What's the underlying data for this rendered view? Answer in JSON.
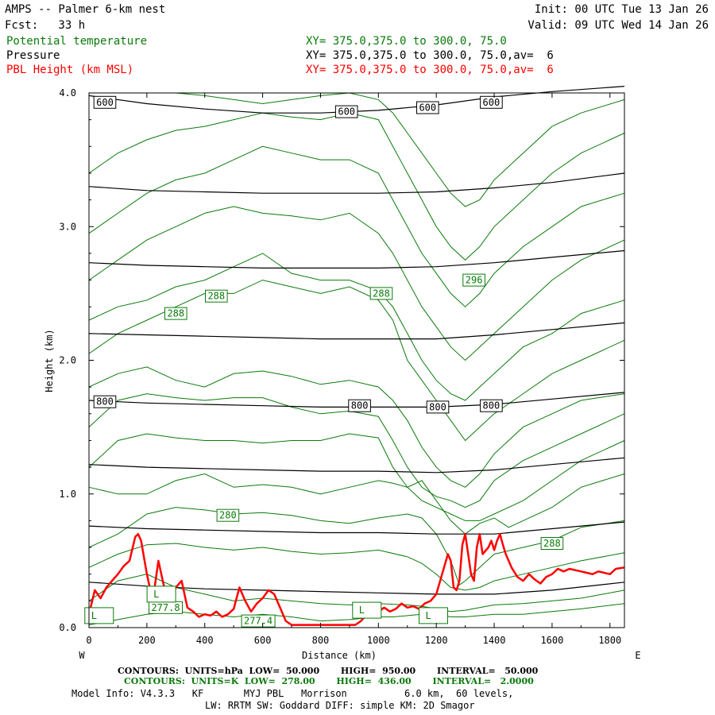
{
  "header": {
    "title": "AMPS -- Palmer 6-km nest",
    "forecast": "Fcst:   33 h",
    "init": "Init: 00 UTC Tue 13 Jan 26",
    "valid": "Valid: 09 UTC Wed 14 Jan 26",
    "fields": [
      {
        "label": "Potential temperature",
        "xy": "XY= 375.0,375.0 to 300.0, 75.0"
      },
      {
        "label": "Pressure",
        "xy": "XY= 375.0,375.0 to 300.0, 75.0,av=  6"
      },
      {
        "label": "PBL Height (km MSL)",
        "xy": "XY= 375.0,375.0 to 300.0, 75.0,av=  6"
      }
    ],
    "colors": {
      "theta": "#0a7a0a",
      "pressure": "#000000",
      "pbl": "#ff0000"
    }
  },
  "chart_data": {
    "type": "line",
    "xlabel": "Distance (km)",
    "ylabel": "Height (km)",
    "xlim": [
      0,
      1850
    ],
    "ylim": [
      0,
      4.0
    ],
    "x_ticks": [
      "0",
      "200",
      "400",
      "600",
      "800",
      "1000",
      "1200",
      "1400",
      "1600",
      "1800"
    ],
    "y_ticks": [
      "0.0",
      "1.0",
      "2.0",
      "3.0",
      "4.0"
    ],
    "x_end_labels": {
      "left": "W",
      "right": "E"
    },
    "grid": false,
    "pressure_contours": [
      {
        "label": "600",
        "x": [
          0,
          200,
          400,
          600,
          800,
          1000,
          1200,
          1400,
          1600,
          1850
        ],
        "y": [
          3.98,
          3.92,
          3.88,
          3.85,
          3.85,
          3.87,
          3.91,
          3.97,
          4.01,
          4.05
        ]
      },
      {
        "label": "",
        "x": [
          0,
          200,
          400,
          600,
          800,
          1000,
          1200,
          1400,
          1600,
          1850
        ],
        "y": [
          3.3,
          3.27,
          3.26,
          3.25,
          3.25,
          3.25,
          3.26,
          3.29,
          3.33,
          3.4
        ]
      },
      {
        "label": "",
        "x": [
          0,
          200,
          400,
          600,
          800,
          1000,
          1200,
          1400,
          1600,
          1850
        ],
        "y": [
          2.73,
          2.71,
          2.7,
          2.69,
          2.69,
          2.69,
          2.7,
          2.73,
          2.77,
          2.82
        ]
      },
      {
        "label": "",
        "x": [
          0,
          200,
          400,
          600,
          800,
          1000,
          1200,
          1400,
          1600,
          1850
        ],
        "y": [
          2.2,
          2.19,
          2.18,
          2.17,
          2.16,
          2.16,
          2.16,
          2.19,
          2.23,
          2.28
        ]
      },
      {
        "label": "800",
        "x": [
          0,
          200,
          400,
          600,
          800,
          1000,
          1200,
          1400,
          1600,
          1850
        ],
        "y": [
          1.7,
          1.68,
          1.67,
          1.66,
          1.65,
          1.65,
          1.65,
          1.67,
          1.71,
          1.76
        ]
      },
      {
        "label": "",
        "x": [
          0,
          200,
          400,
          600,
          800,
          1000,
          1200,
          1400,
          1600,
          1850
        ],
        "y": [
          1.22,
          1.2,
          1.19,
          1.18,
          1.17,
          1.17,
          1.16,
          1.18,
          1.22,
          1.27
        ]
      },
      {
        "label": "",
        "x": [
          0,
          200,
          400,
          600,
          800,
          1000,
          1200,
          1400,
          1600,
          1850
        ],
        "y": [
          0.76,
          0.74,
          0.73,
          0.72,
          0.71,
          0.71,
          0.7,
          0.7,
          0.74,
          0.79
        ]
      },
      {
        "label": "",
        "x": [
          0,
          200,
          400,
          600,
          800,
          1000,
          1200,
          1400,
          1600,
          1850
        ],
        "y": [
          0.34,
          0.31,
          0.29,
          0.28,
          0.27,
          0.26,
          0.25,
          0.25,
          0.28,
          0.34
        ]
      }
    ],
    "pressure_labels": [
      {
        "text": "600",
        "x": 55,
        "y": 3.93
      },
      {
        "text": "600",
        "x": 890,
        "y": 3.86
      },
      {
        "text": "600",
        "x": 1170,
        "y": 3.89
      },
      {
        "text": "600",
        "x": 1390,
        "y": 3.93
      },
      {
        "text": "800",
        "x": 55,
        "y": 1.69
      },
      {
        "text": "800",
        "x": 935,
        "y": 1.66
      },
      {
        "text": "800",
        "x": 1205,
        "y": 1.65
      },
      {
        "text": "800",
        "x": 1390,
        "y": 1.66
      }
    ],
    "theta_contours": [
      {
        "x": [
          0,
          100,
          200,
          300,
          400,
          500,
          600,
          700,
          800,
          900,
          1000,
          1050,
          1100,
          1150,
          1200,
          1250,
          1300,
          1400,
          1500,
          1600,
          1700,
          1850
        ],
        "y": [
          0.02,
          0.06,
          0.1,
          0.12,
          0.1,
          0.08,
          0.1,
          0.08,
          0.05,
          0.06,
          0.08,
          0.08,
          0.09,
          0.1,
          0.1,
          0.08,
          0.08,
          0.1,
          0.1,
          0.12,
          0.14,
          0.18
        ]
      },
      {
        "x": [
          0,
          100,
          200,
          300,
          400,
          500,
          600,
          700,
          800,
          900,
          1000,
          1100,
          1150,
          1200,
          1250,
          1300,
          1350,
          1400,
          1500,
          1600,
          1700,
          1850
        ],
        "y": [
          0.2,
          0.35,
          0.4,
          0.3,
          0.25,
          0.2,
          0.22,
          0.2,
          0.18,
          0.17,
          0.18,
          0.17,
          0.16,
          0.14,
          0.12,
          0.13,
          0.15,
          0.17,
          0.18,
          0.2,
          0.22,
          0.28
        ]
      },
      {
        "x": [
          0,
          100,
          200,
          300,
          400,
          500,
          600,
          700,
          800,
          900,
          1000,
          1100,
          1150,
          1200,
          1250,
          1300,
          1350,
          1400,
          1500,
          1600,
          1700,
          1850
        ],
        "y": [
          0.45,
          0.55,
          0.62,
          0.63,
          0.6,
          0.58,
          0.6,
          0.57,
          0.55,
          0.56,
          0.58,
          0.53,
          0.48,
          0.4,
          0.3,
          0.28,
          0.3,
          0.35,
          0.4,
          0.45,
          0.5,
          0.56
        ]
      },
      {
        "x": [
          0,
          100,
          200,
          300,
          400,
          500,
          600,
          700,
          800,
          900,
          1000,
          1100,
          1150,
          1200,
          1250,
          1280,
          1300,
          1350,
          1400,
          1500,
          1600,
          1700,
          1850
        ],
        "y": [
          0.6,
          0.7,
          0.85,
          0.9,
          0.88,
          0.85,
          0.86,
          0.84,
          0.8,
          0.78,
          0.82,
          0.85,
          0.82,
          0.7,
          0.5,
          0.32,
          0.35,
          0.45,
          0.55,
          0.6,
          0.65,
          0.75,
          0.8
        ]
      },
      {
        "x": [
          0,
          100,
          200,
          300,
          400,
          500,
          600,
          700,
          800,
          900,
          1000,
          1050,
          1100,
          1150,
          1200,
          1250,
          1300,
          1350,
          1400,
          1450,
          1500,
          1600,
          1700,
          1850
        ],
        "y": [
          1.05,
          1.0,
          1.0,
          1.1,
          1.15,
          1.05,
          1.07,
          1.05,
          1.0,
          1.05,
          1.1,
          1.08,
          1.05,
          1.1,
          0.95,
          0.8,
          0.7,
          0.78,
          0.82,
          0.75,
          0.8,
          0.9,
          1.05,
          1.15
        ]
      },
      {
        "x": [
          0,
          100,
          200,
          300,
          400,
          500,
          600,
          700,
          800,
          900,
          1000,
          1050,
          1100,
          1150,
          1200,
          1250,
          1300,
          1350,
          1400,
          1500,
          1600,
          1700,
          1850
        ],
        "y": [
          1.2,
          1.4,
          1.45,
          1.42,
          1.4,
          1.4,
          1.38,
          1.4,
          1.4,
          1.45,
          1.42,
          1.2,
          1.05,
          0.95,
          0.9,
          0.85,
          0.8,
          0.8,
          0.85,
          0.95,
          1.1,
          1.25,
          1.4
        ]
      },
      {
        "x": [
          0,
          100,
          200,
          300,
          400,
          500,
          600,
          700,
          800,
          900,
          1000,
          1050,
          1100,
          1150,
          1200,
          1250,
          1300,
          1350,
          1400,
          1500,
          1600,
          1700,
          1850
        ],
        "y": [
          1.5,
          1.7,
          1.75,
          1.72,
          1.7,
          1.72,
          1.72,
          1.65,
          1.6,
          1.62,
          1.58,
          1.4,
          1.2,
          1.05,
          0.98,
          0.95,
          0.9,
          0.95,
          1.1,
          1.25,
          1.35,
          1.45,
          1.6
        ]
      },
      {
        "x": [
          0,
          100,
          200,
          300,
          400,
          500,
          600,
          700,
          800,
          900,
          1000,
          1050,
          1100,
          1150,
          1200,
          1250,
          1300,
          1350,
          1400,
          1500,
          1600,
          1700,
          1850
        ],
        "y": [
          1.8,
          1.9,
          1.95,
          1.85,
          1.8,
          1.9,
          1.92,
          1.88,
          1.82,
          1.85,
          1.8,
          1.7,
          1.55,
          1.35,
          1.2,
          1.1,
          1.05,
          1.15,
          1.3,
          1.5,
          1.6,
          1.7,
          1.75
        ]
      },
      {
        "x": [
          0,
          100,
          200,
          300,
          400,
          500,
          600,
          700,
          800,
          900,
          1000,
          1050,
          1100,
          1150,
          1200,
          1250,
          1300,
          1350,
          1400,
          1500,
          1600,
          1700,
          1850
        ],
        "y": [
          2.05,
          2.2,
          2.3,
          2.4,
          2.5,
          2.5,
          2.6,
          2.55,
          2.5,
          2.55,
          2.45,
          2.3,
          2.0,
          1.85,
          1.7,
          1.55,
          1.4,
          1.5,
          1.6,
          1.75,
          1.9,
          2.0,
          2.15
        ]
      },
      {
        "x": [
          0,
          100,
          200,
          300,
          400,
          500,
          600,
          700,
          800,
          900,
          1000,
          1050,
          1100,
          1150,
          1200,
          1250,
          1300,
          1350,
          1400,
          1500,
          1600,
          1700,
          1850
        ],
        "y": [
          2.3,
          2.4,
          2.45,
          2.55,
          2.6,
          2.7,
          2.8,
          2.65,
          2.6,
          2.6,
          2.52,
          2.4,
          2.2,
          2.0,
          1.85,
          1.75,
          1.7,
          1.8,
          1.9,
          2.1,
          2.2,
          2.35,
          2.45
        ]
      },
      {
        "x": [
          0,
          100,
          200,
          300,
          400,
          500,
          600,
          700,
          800,
          900,
          1000,
          1050,
          1100,
          1150,
          1200,
          1250,
          1300,
          1350,
          1400,
          1500,
          1600,
          1700,
          1850
        ],
        "y": [
          2.6,
          2.75,
          2.9,
          3.0,
          3.1,
          3.15,
          3.1,
          3.08,
          3.05,
          3.1,
          2.95,
          2.8,
          2.6,
          2.4,
          2.25,
          2.1,
          2.0,
          2.1,
          2.2,
          2.4,
          2.6,
          2.75,
          2.9
        ]
      },
      {
        "x": [
          0,
          100,
          200,
          300,
          400,
          500,
          600,
          700,
          800,
          900,
          1000,
          1050,
          1100,
          1150,
          1200,
          1250,
          1300,
          1350,
          1400,
          1500,
          1600,
          1700,
          1850
        ],
        "y": [
          2.95,
          3.1,
          3.25,
          3.35,
          3.4,
          3.5,
          3.6,
          3.55,
          3.5,
          3.5,
          3.4,
          3.2,
          3.0,
          2.8,
          2.65,
          2.5,
          2.4,
          2.5,
          2.65,
          2.85,
          3.0,
          3.15,
          3.25
        ]
      },
      {
        "x": [
          0,
          100,
          200,
          300,
          400,
          500,
          600,
          700,
          800,
          900,
          1000,
          1050,
          1100,
          1150,
          1200,
          1250,
          1300,
          1350,
          1400,
          1500,
          1600,
          1700,
          1850
        ],
        "y": [
          3.4,
          3.55,
          3.65,
          3.72,
          3.75,
          3.8,
          3.85,
          3.82,
          3.8,
          3.85,
          3.8,
          3.6,
          3.4,
          3.2,
          3.0,
          2.85,
          2.75,
          2.85,
          3.0,
          3.2,
          3.4,
          3.55,
          3.7
        ]
      },
      {
        "x": [
          300,
          400,
          500,
          600,
          700,
          800,
          900,
          1000,
          1050,
          1100,
          1150,
          1200,
          1250,
          1300,
          1350,
          1400,
          1500,
          1600,
          1700,
          1850
        ],
        "y": [
          4.0,
          3.98,
          3.95,
          3.92,
          3.95,
          3.98,
          4.0,
          3.95,
          3.85,
          3.7,
          3.55,
          3.4,
          3.25,
          3.15,
          3.2,
          3.35,
          3.55,
          3.75,
          3.85,
          3.95
        ]
      }
    ],
    "theta_labels": [
      {
        "text": "288",
        "x": 300,
        "y": 2.35
      },
      {
        "text": "288",
        "x": 440,
        "y": 2.48
      },
      {
        "text": "288",
        "x": 1010,
        "y": 2.5
      },
      {
        "text": "296",
        "x": 1330,
        "y": 2.6
      },
      {
        "text": "280",
        "x": 480,
        "y": 0.84
      },
      {
        "text": "288",
        "x": 1600,
        "y": 0.63
      },
      {
        "text": "277.8",
        "x": 265,
        "y": 0.15
      },
      {
        "text": "277.4",
        "x": 585,
        "y": 0.05
      }
    ],
    "lows": [
      {
        "text": "L",
        "x": 35,
        "y": 0.09
      },
      {
        "text": "L",
        "x": 250,
        "y": 0.25
      },
      {
        "text": "L",
        "x": 960,
        "y": 0.13
      },
      {
        "text": "L",
        "x": 1190,
        "y": 0.09
      }
    ],
    "pbl_height": {
      "name": "PBL Height (km MSL)",
      "x": [
        0,
        20,
        40,
        60,
        80,
        100,
        120,
        140,
        160,
        170,
        180,
        200,
        220,
        240,
        260,
        280,
        300,
        320,
        340,
        360,
        380,
        400,
        420,
        440,
        460,
        480,
        500,
        520,
        540,
        560,
        580,
        600,
        620,
        640,
        660,
        680,
        700,
        720,
        760,
        800,
        840,
        880,
        920,
        940,
        960,
        980,
        1000,
        1020,
        1040,
        1060,
        1080,
        1100,
        1120,
        1140,
        1160,
        1180,
        1200,
        1220,
        1240,
        1250,
        1260,
        1270,
        1280,
        1290,
        1300,
        1310,
        1320,
        1330,
        1340,
        1350,
        1360,
        1380,
        1390,
        1400,
        1410,
        1420,
        1430,
        1440,
        1460,
        1480,
        1500,
        1520,
        1540,
        1560,
        1580,
        1600,
        1620,
        1640,
        1660,
        1680,
        1700,
        1720,
        1740,
        1760,
        1780,
        1800,
        1820,
        1850
      ],
      "y": [
        0.1,
        0.28,
        0.22,
        0.3,
        0.35,
        0.4,
        0.46,
        0.5,
        0.68,
        0.7,
        0.65,
        0.4,
        0.2,
        0.5,
        0.3,
        0.22,
        0.3,
        0.35,
        0.15,
        0.12,
        0.08,
        0.1,
        0.09,
        0.12,
        0.08,
        0.1,
        0.14,
        0.3,
        0.2,
        0.12,
        0.18,
        0.22,
        0.28,
        0.25,
        0.15,
        0.05,
        0.02,
        0.02,
        0.02,
        0.02,
        0.02,
        0.02,
        0.02,
        0.05,
        0.1,
        0.08,
        0.12,
        0.15,
        0.12,
        0.14,
        0.18,
        0.15,
        0.16,
        0.14,
        0.18,
        0.2,
        0.25,
        0.4,
        0.55,
        0.5,
        0.3,
        0.28,
        0.35,
        0.62,
        0.7,
        0.55,
        0.4,
        0.35,
        0.6,
        0.7,
        0.55,
        0.6,
        0.65,
        0.58,
        0.65,
        0.7,
        0.62,
        0.55,
        0.45,
        0.38,
        0.35,
        0.4,
        0.36,
        0.33,
        0.38,
        0.4,
        0.44,
        0.42,
        0.44,
        0.43,
        0.42,
        0.41,
        0.4,
        0.42,
        0.41,
        0.4,
        0.44,
        0.45
      ]
    }
  },
  "footer": {
    "contours_line1": "CONTOURS:  UNITS=hPa  LOW=  50.000       HIGH=  950.00       INTERVAL=   50.000",
    "contours_line2": "CONTOURS:  UNITS=K  LOW=  278.00       HIGH=  436.00       INTERVAL=   2.0000",
    "model_info": "Model Info: V4.3.3   KF       MYJ PBL   Morrison          6.0 km,  60 levels,",
    "physics": "LW: RRTM SW: Goddard DIFF: simple KM: 2D Smagor"
  }
}
